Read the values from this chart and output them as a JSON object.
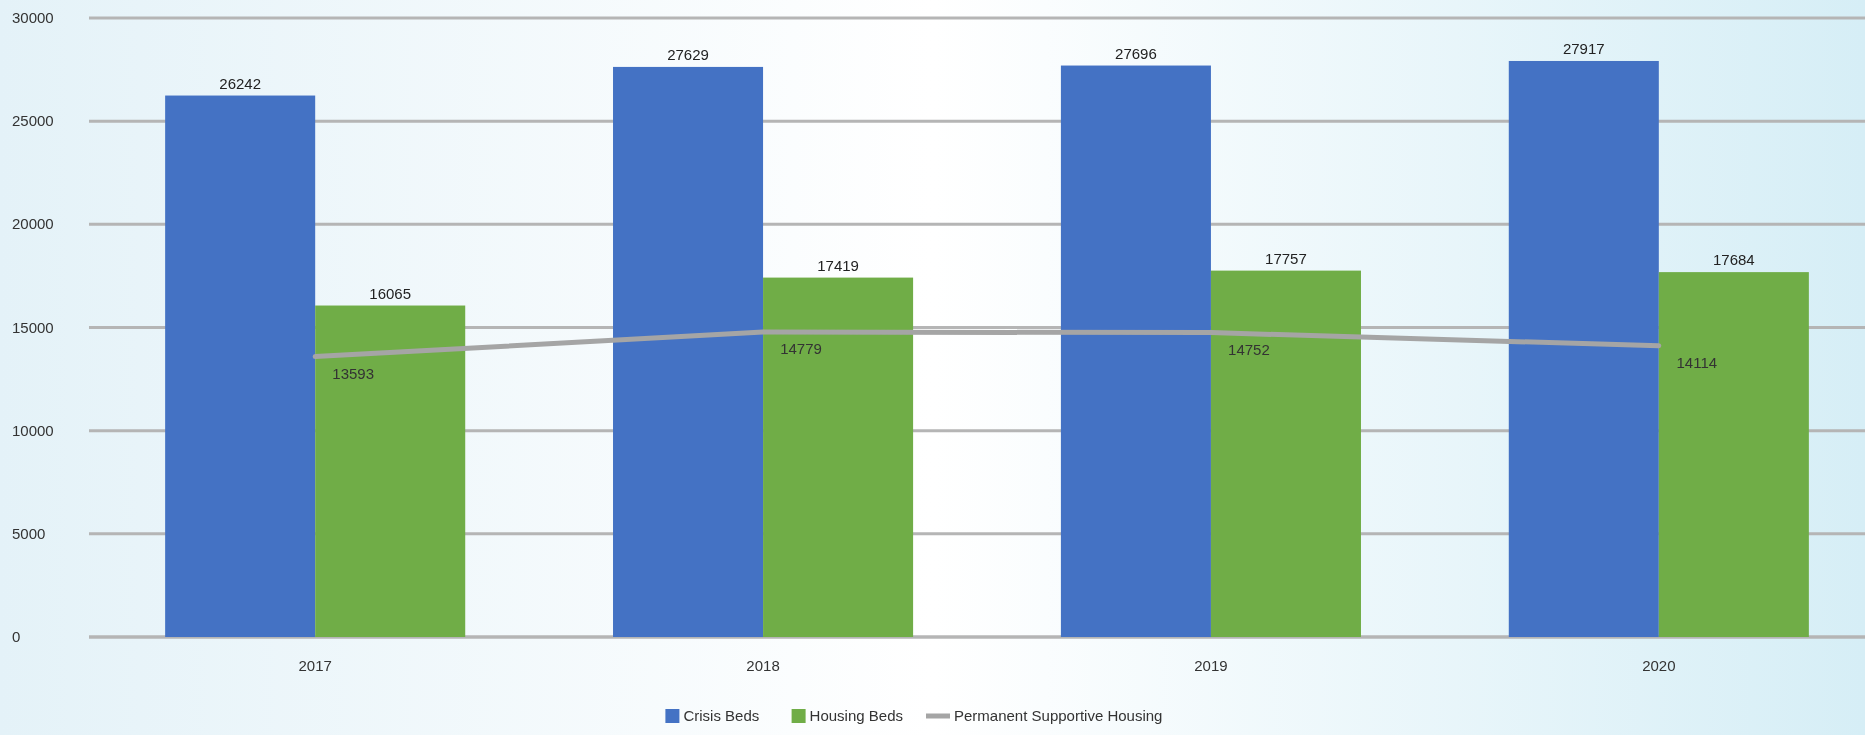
{
  "chart_data": {
    "type": "bar",
    "categories": [
      "2017",
      "2018",
      "2019",
      "2020"
    ],
    "series": [
      {
        "name": "Crisis Beds",
        "color": "#4472c4",
        "values": [
          26242,
          27629,
          27696,
          27917
        ]
      },
      {
        "name": "Housing Beds",
        "color": "#70ad47",
        "values": [
          16065,
          17419,
          17757,
          17684
        ]
      },
      {
        "name": "Permanent Supportive Housing",
        "type": "line",
        "color": "#a5a5a5",
        "values": [
          13593,
          14779,
          14752,
          14114
        ]
      }
    ],
    "ylim": [
      0,
      30000
    ],
    "yticks": [
      0,
      5000,
      10000,
      15000,
      20000,
      25000,
      30000
    ],
    "grid": "y",
    "legend": "bottom",
    "data_labels": true
  }
}
